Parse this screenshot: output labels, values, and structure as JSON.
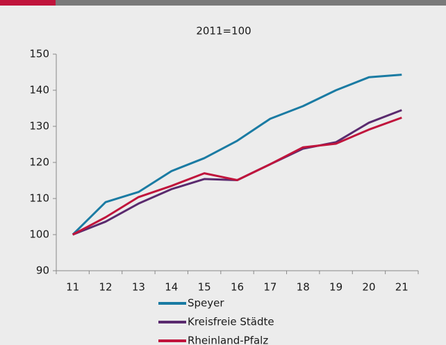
{
  "chart_data": {
    "type": "line",
    "title": "2011=100",
    "categories": [
      "11",
      "12",
      "13",
      "14",
      "15",
      "16",
      "17",
      "18",
      "19",
      "20",
      "21"
    ],
    "series": [
      {
        "name": "Speyer",
        "color": "#1a7ba3",
        "values": [
          100,
          109,
          111.8,
          117.6,
          121.2,
          126,
          132.1,
          135.6,
          140,
          143.6,
          144.3
        ]
      },
      {
        "name": "Kreisfreie Städte",
        "color": "#5a2a6e",
        "values": [
          100,
          103.6,
          108.6,
          112.6,
          115.4,
          115.1,
          119.5,
          123.8,
          125.6,
          131,
          134.5
        ]
      },
      {
        "name": "Rheinland-Pfalz",
        "color": "#c0143c",
        "values": [
          100,
          104.8,
          110.4,
          113.5,
          117,
          115.1,
          119.5,
          124.2,
          125.2,
          129.1,
          132.4
        ]
      }
    ],
    "ylim": [
      90,
      150
    ],
    "yticks": [
      90,
      100,
      110,
      120,
      130,
      140,
      150
    ],
    "grid": false,
    "legend": "bottom"
  }
}
